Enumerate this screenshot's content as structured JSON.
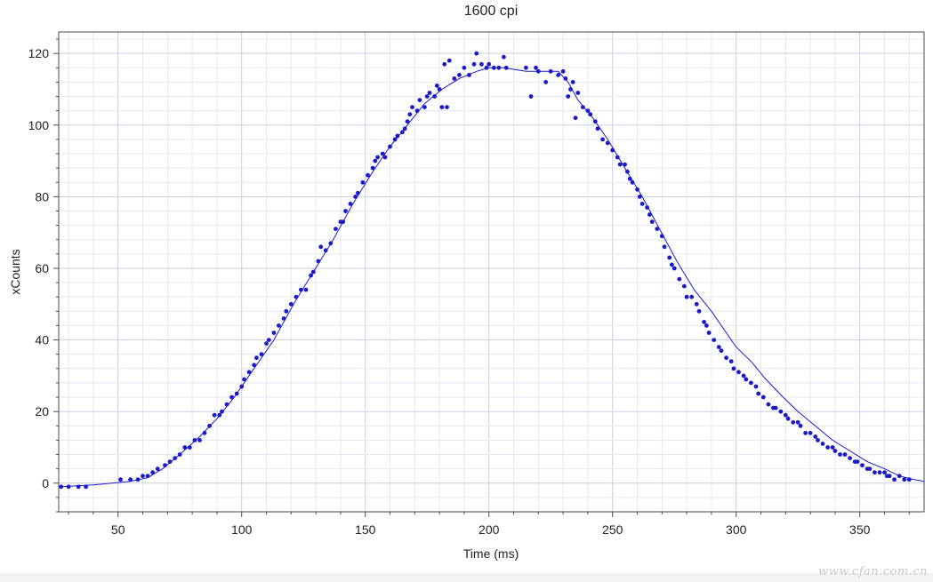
{
  "chart_data": {
    "type": "scatter",
    "title": "1600 cpi",
    "xlabel": "Time (ms)",
    "ylabel": "xCounts",
    "xlim": [
      26,
      376
    ],
    "ylim": [
      -8,
      126
    ],
    "xticks": [
      50,
      100,
      150,
      200,
      250,
      300,
      350
    ],
    "yticks": [
      0,
      20,
      40,
      60,
      80,
      100,
      120
    ],
    "grid": true,
    "legend": "none",
    "colors": {
      "marker": "#1a1acc",
      "line": "#1a1acc",
      "grid_major": "#c9cde0",
      "grid_minor": "#e6e8f2",
      "axis": "#4a4a4a"
    },
    "series": [
      {
        "type": "scatter",
        "points": [
          [
            27,
            -1
          ],
          [
            30,
            -1
          ],
          [
            34,
            -1
          ],
          [
            37,
            -1
          ],
          [
            51,
            1
          ],
          [
            55,
            1
          ],
          [
            58,
            1
          ],
          [
            60,
            2
          ],
          [
            62,
            2
          ],
          [
            64,
            3
          ],
          [
            66,
            4
          ],
          [
            69,
            5
          ],
          [
            71,
            6
          ],
          [
            73,
            7
          ],
          [
            75,
            8
          ],
          [
            77,
            10
          ],
          [
            79,
            10
          ],
          [
            81,
            12
          ],
          [
            83,
            12
          ],
          [
            85,
            14
          ],
          [
            87,
            16
          ],
          [
            89,
            19
          ],
          [
            91,
            19
          ],
          [
            92,
            20
          ],
          [
            94,
            22
          ],
          [
            96,
            24
          ],
          [
            98,
            25
          ],
          [
            100,
            27
          ],
          [
            101,
            29
          ],
          [
            103,
            31
          ],
          [
            105,
            33
          ],
          [
            106,
            35
          ],
          [
            108,
            36
          ],
          [
            110,
            39
          ],
          [
            111,
            40
          ],
          [
            113,
            42
          ],
          [
            115,
            44
          ],
          [
            117,
            46
          ],
          [
            118,
            48
          ],
          [
            120,
            50
          ],
          [
            122,
            52
          ],
          [
            124,
            54
          ],
          [
            126,
            54
          ],
          [
            128,
            58
          ],
          [
            129,
            59
          ],
          [
            131,
            62
          ],
          [
            132,
            66
          ],
          [
            134,
            65
          ],
          [
            136,
            67
          ],
          [
            138,
            71
          ],
          [
            140,
            73
          ],
          [
            141,
            73
          ],
          [
            142,
            76
          ],
          [
            144,
            78
          ],
          [
            146,
            80
          ],
          [
            147,
            81
          ],
          [
            149,
            84
          ],
          [
            151,
            86
          ],
          [
            153,
            88
          ],
          [
            154,
            90
          ],
          [
            155,
            91
          ],
          [
            157,
            92
          ],
          [
            158,
            91
          ],
          [
            160,
            94
          ],
          [
            162,
            96
          ],
          [
            163,
            97
          ],
          [
            165,
            98
          ],
          [
            166,
            99
          ],
          [
            167,
            101
          ],
          [
            168,
            103
          ],
          [
            169,
            105
          ],
          [
            171,
            104
          ],
          [
            172,
            107
          ],
          [
            174,
            105
          ],
          [
            175,
            108
          ],
          [
            176,
            109
          ],
          [
            178,
            108
          ],
          [
            179,
            111
          ],
          [
            180,
            110
          ],
          [
            181,
            105
          ],
          [
            182,
            117
          ],
          [
            183,
            105
          ],
          [
            184,
            118
          ],
          [
            186,
            113
          ],
          [
            188,
            114
          ],
          [
            190,
            116
          ],
          [
            192,
            114
          ],
          [
            194,
            117
          ],
          [
            195,
            120
          ],
          [
            197,
            117
          ],
          [
            199,
            116
          ],
          [
            200,
            117
          ],
          [
            202,
            116
          ],
          [
            204,
            116
          ],
          [
            206,
            119
          ],
          [
            207,
            116
          ],
          [
            215,
            116
          ],
          [
            217,
            108
          ],
          [
            219,
            116
          ],
          [
            220,
            115
          ],
          [
            223,
            112
          ],
          [
            225,
            115
          ],
          [
            228,
            114
          ],
          [
            230,
            115
          ],
          [
            231,
            113
          ],
          [
            232,
            108
          ],
          [
            233,
            110
          ],
          [
            234,
            112
          ],
          [
            235,
            102
          ],
          [
            236,
            109
          ],
          [
            238,
            105
          ],
          [
            240,
            104
          ],
          [
            241,
            103
          ],
          [
            243,
            101
          ],
          [
            244,
            99
          ],
          [
            246,
            96
          ],
          [
            248,
            95
          ],
          [
            250,
            93
          ],
          [
            252,
            91
          ],
          [
            253,
            89
          ],
          [
            255,
            89
          ],
          [
            256,
            87
          ],
          [
            257,
            85
          ],
          [
            258,
            84
          ],
          [
            260,
            82
          ],
          [
            261,
            80
          ],
          [
            262,
            78
          ],
          [
            264,
            77
          ],
          [
            265,
            75
          ],
          [
            266,
            73
          ],
          [
            268,
            71
          ],
          [
            270,
            69
          ],
          [
            271,
            66
          ],
          [
            273,
            63
          ],
          [
            274,
            61
          ],
          [
            275,
            60
          ],
          [
            277,
            57
          ],
          [
            279,
            55
          ],
          [
            280,
            52
          ],
          [
            282,
            52
          ],
          [
            284,
            50
          ],
          [
            285,
            48
          ],
          [
            287,
            45
          ],
          [
            288,
            44
          ],
          [
            289,
            42
          ],
          [
            291,
            40
          ],
          [
            293,
            38
          ],
          [
            294,
            37
          ],
          [
            296,
            35
          ],
          [
            298,
            34
          ],
          [
            299,
            32
          ],
          [
            301,
            31
          ],
          [
            303,
            30
          ],
          [
            304,
            29
          ],
          [
            306,
            28
          ],
          [
            308,
            27
          ],
          [
            309,
            25
          ],
          [
            311,
            24
          ],
          [
            313,
            22
          ],
          [
            315,
            21
          ],
          [
            316,
            21
          ],
          [
            318,
            20
          ],
          [
            320,
            19
          ],
          [
            321,
            18
          ],
          [
            323,
            17
          ],
          [
            325,
            17
          ],
          [
            326,
            16
          ],
          [
            328,
            14
          ],
          [
            330,
            14
          ],
          [
            332,
            13
          ],
          [
            333,
            12
          ],
          [
            335,
            11
          ],
          [
            337,
            10
          ],
          [
            339,
            10
          ],
          [
            340,
            9
          ],
          [
            342,
            8
          ],
          [
            344,
            8
          ],
          [
            346,
            7
          ],
          [
            348,
            6
          ],
          [
            349,
            6
          ],
          [
            351,
            5
          ],
          [
            353,
            4
          ],
          [
            354,
            4
          ],
          [
            356,
            3
          ],
          [
            358,
            3
          ],
          [
            360,
            3
          ],
          [
            361,
            2
          ],
          [
            362,
            2
          ],
          [
            364,
            1
          ],
          [
            366,
            2
          ],
          [
            368,
            1
          ],
          [
            370,
            1
          ]
        ]
      },
      {
        "type": "line",
        "points": [
          [
            27,
            -1
          ],
          [
            40,
            -0.5
          ],
          [
            55,
            0.5
          ],
          [
            62,
            1.5
          ],
          [
            68,
            4
          ],
          [
            75,
            8
          ],
          [
            83,
            13
          ],
          [
            90,
            18
          ],
          [
            97,
            24
          ],
          [
            105,
            32
          ],
          [
            113,
            40
          ],
          [
            121,
            50
          ],
          [
            129,
            59
          ],
          [
            137,
            68
          ],
          [
            145,
            78
          ],
          [
            153,
            87
          ],
          [
            160,
            94
          ],
          [
            167,
            100
          ],
          [
            174,
            106
          ],
          [
            181,
            110
          ],
          [
            188,
            113
          ],
          [
            195,
            115
          ],
          [
            200,
            116
          ],
          [
            206,
            116
          ],
          [
            215,
            115
          ],
          [
            222,
            115
          ],
          [
            228,
            115
          ],
          [
            232,
            112
          ],
          [
            236,
            107
          ],
          [
            242,
            102
          ],
          [
            248,
            96
          ],
          [
            255,
            88
          ],
          [
            262,
            80
          ],
          [
            269,
            71
          ],
          [
            276,
            62
          ],
          [
            283,
            54
          ],
          [
            290,
            48
          ],
          [
            295,
            43
          ],
          [
            300,
            38
          ],
          [
            306,
            34
          ],
          [
            312,
            29
          ],
          [
            319,
            24
          ],
          [
            325,
            20
          ],
          [
            332,
            16
          ],
          [
            339,
            12
          ],
          [
            346,
            9
          ],
          [
            353,
            6
          ],
          [
            360,
            4
          ],
          [
            366,
            2
          ],
          [
            372,
            1
          ],
          [
            376,
            0.5
          ]
        ]
      }
    ]
  },
  "watermark": "www.cfan.com.cn"
}
